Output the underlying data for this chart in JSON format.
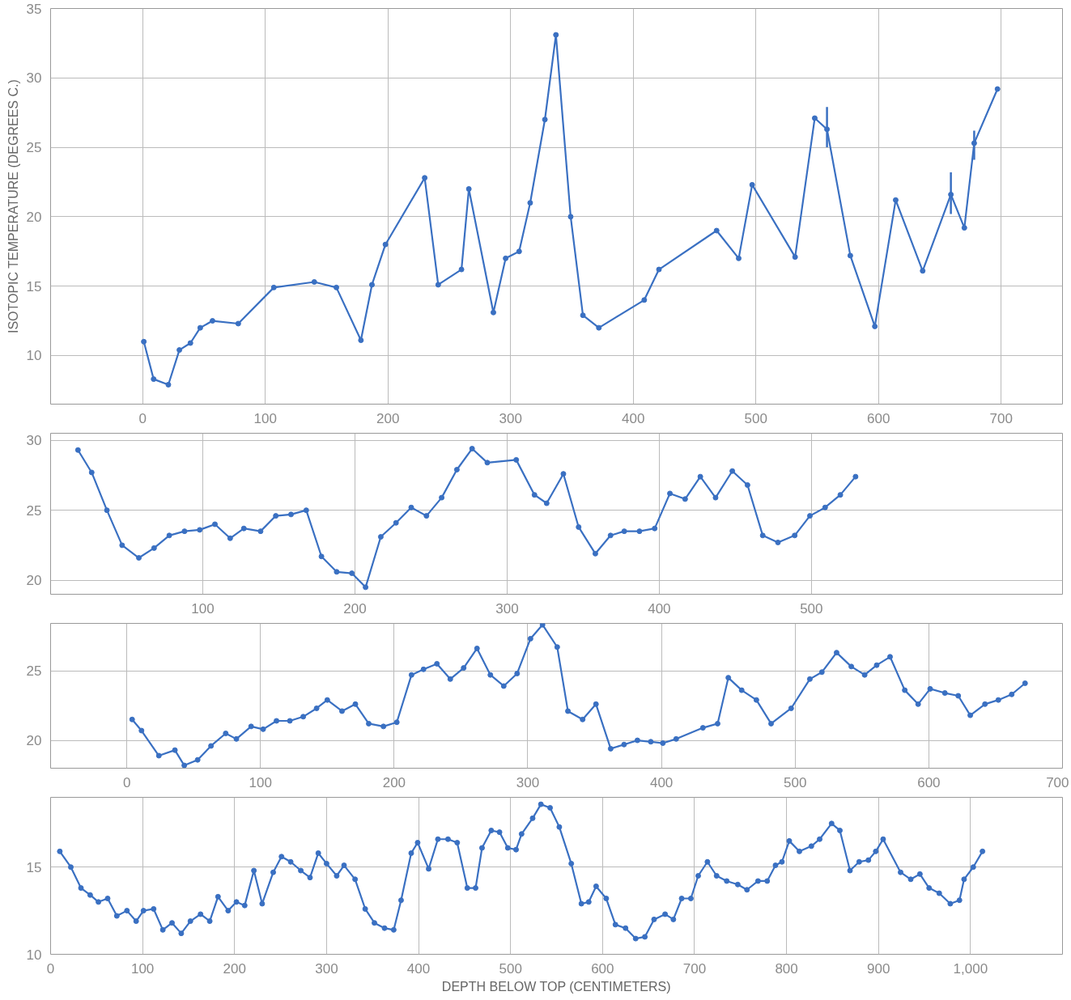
{
  "chart_data": [
    {
      "type": "line",
      "ylabel": "ISOTOPIC TEMPERATURE (DEGREES C.)",
      "marker": "circle",
      "grid": true,
      "color": "#3a70c2",
      "x": [
        1,
        9,
        21,
        30,
        39,
        47,
        57,
        78,
        107,
        140,
        158,
        178,
        187,
        198,
        230,
        241,
        260,
        266,
        286,
        296,
        307,
        316,
        328,
        337,
        349,
        359,
        372,
        409,
        421,
        468,
        486,
        497,
        532,
        548,
        558,
        577,
        597,
        614,
        636,
        659,
        670,
        678,
        697
      ],
      "values": [
        11.0,
        8.3,
        7.9,
        10.4,
        10.9,
        12.0,
        12.5,
        12.3,
        14.9,
        15.3,
        14.9,
        11.1,
        15.1,
        18.0,
        22.8,
        15.1,
        16.2,
        22.0,
        13.1,
        17.0,
        17.5,
        21.0,
        27.0,
        33.1,
        20.0,
        12.9,
        12.0,
        14.0,
        16.2,
        19.0,
        17.0,
        22.3,
        17.1,
        27.1,
        26.3,
        17.2,
        12.1,
        21.2,
        16.1,
        21.6,
        19.2,
        25.3,
        29.2
      ],
      "errors": [
        null,
        null,
        null,
        null,
        null,
        null,
        null,
        null,
        null,
        null,
        null,
        null,
        null,
        null,
        null,
        null,
        null,
        null,
        null,
        null,
        null,
        null,
        null,
        null,
        null,
        null,
        null,
        null,
        null,
        null,
        null,
        null,
        null,
        null,
        [
          25.0,
          27.9
        ],
        null,
        null,
        null,
        null,
        [
          20.2,
          23.2
        ],
        null,
        [
          24.1,
          26.2
        ],
        null
      ],
      "xlim": [
        -75,
        750
      ],
      "ylim": [
        6.5,
        35
      ],
      "xticks": [
        0,
        100,
        200,
        300,
        400,
        500,
        600,
        700
      ],
      "yticks": [
        10,
        15,
        20,
        25,
        30,
        35
      ]
    },
    {
      "type": "line",
      "marker": "circle",
      "grid": true,
      "color": "#3a70c2",
      "x": [
        18,
        27,
        37,
        47,
        58,
        68,
        78,
        88,
        98,
        108,
        118,
        127,
        138,
        148,
        158,
        168,
        178,
        188,
        198,
        207,
        217,
        227,
        237,
        247,
        257,
        267,
        277,
        287,
        306,
        318,
        326,
        337,
        347,
        358,
        368,
        377,
        387,
        397,
        407,
        417,
        427,
        437,
        448,
        458,
        468,
        478,
        489,
        499,
        509,
        519,
        529
      ],
      "values": [
        29.3,
        27.7,
        25.0,
        22.5,
        21.6,
        22.3,
        23.2,
        23.5,
        23.6,
        24.0,
        23.0,
        23.7,
        23.5,
        24.6,
        24.7,
        25.0,
        21.7,
        20.6,
        20.5,
        19.5,
        23.1,
        24.1,
        25.2,
        24.6,
        25.9,
        27.9,
        29.4,
        28.4,
        28.6,
        26.1,
        25.5,
        27.6,
        23.8,
        21.9,
        23.2,
        23.5,
        23.5,
        23.7,
        26.2,
        25.8,
        27.4,
        25.9,
        27.8,
        26.8,
        23.2,
        22.7,
        23.2,
        24.6,
        25.2,
        26.1,
        27.4
      ],
      "xlim": [
        0,
        665
      ],
      "ylim": [
        19,
        30.5
      ],
      "xticks": [
        100,
        200,
        300,
        400,
        500
      ],
      "yticks": [
        20,
        25,
        30
      ]
    },
    {
      "type": "line",
      "marker": "circle",
      "grid": true,
      "color": "#3a70c2",
      "x": [
        4,
        11,
        24,
        36,
        43,
        53,
        63,
        74,
        82,
        93,
        102,
        112,
        122,
        132,
        142,
        150,
        161,
        171,
        181,
        192,
        202,
        213,
        222,
        232,
        242,
        252,
        262,
        272,
        282,
        292,
        302,
        311,
        322,
        330,
        341,
        351,
        362,
        372,
        382,
        392,
        401,
        411,
        431,
        442,
        450,
        460,
        471,
        482,
        497,
        511,
        520,
        531,
        542,
        552,
        561,
        571,
        582,
        592,
        601,
        612,
        622,
        631,
        642,
        652,
        662,
        672
      ],
      "values": [
        21.5,
        20.7,
        18.9,
        19.3,
        18.2,
        18.6,
        19.6,
        20.5,
        20.1,
        21.0,
        20.8,
        21.4,
        21.4,
        21.7,
        22.3,
        22.9,
        22.1,
        22.6,
        21.2,
        21.0,
        21.3,
        24.7,
        25.1,
        25.5,
        24.4,
        25.2,
        26.6,
        24.7,
        23.9,
        24.8,
        27.3,
        28.3,
        26.7,
        22.1,
        21.5,
        22.6,
        19.4,
        19.7,
        20.0,
        19.9,
        19.8,
        20.1,
        20.9,
        21.2,
        24.5,
        23.6,
        22.9,
        21.2,
        22.3,
        24.4,
        24.9,
        26.3,
        25.3,
        24.7,
        25.4,
        26.0,
        23.6,
        22.6,
        23.7,
        23.4,
        23.2,
        21.8,
        22.6,
        22.9,
        23.3,
        24.1
      ],
      "xlim": [
        -57,
        700
      ],
      "ylim": [
        18,
        28.4
      ],
      "xticks": [
        0,
        100,
        200,
        300,
        400,
        500,
        600,
        700
      ],
      "yticks": [
        20,
        25
      ]
    },
    {
      "type": "line",
      "xlabel": "DEPTH BELOW TOP (CENTIMETERS)",
      "marker": "circle",
      "grid": true,
      "color": "#3a70c2",
      "x": [
        10,
        22,
        33,
        43,
        52,
        62,
        72,
        83,
        93,
        101,
        112,
        122,
        132,
        142,
        152,
        163,
        173,
        182,
        193,
        202,
        211,
        221,
        230,
        242,
        251,
        261,
        272,
        282,
        291,
        300,
        311,
        319,
        331,
        342,
        352,
        363,
        373,
        381,
        392,
        399,
        411,
        421,
        432,
        442,
        453,
        462,
        469,
        479,
        488,
        497,
        506,
        512,
        524,
        533,
        543,
        553,
        566,
        577,
        585,
        593,
        604,
        614,
        625,
        636,
        646,
        656,
        668,
        677,
        686,
        696,
        704,
        714,
        724,
        735,
        747,
        757,
        769,
        779,
        788,
        795,
        803,
        814,
        827,
        836,
        849,
        858,
        869,
        879,
        889,
        897,
        905,
        924,
        935,
        945,
        955,
        966,
        978,
        988,
        993,
        1003,
        1013
      ],
      "values": [
        15.9,
        15.0,
        13.8,
        13.4,
        13.0,
        13.2,
        12.2,
        12.5,
        11.9,
        12.5,
        12.6,
        11.4,
        11.8,
        11.2,
        11.9,
        12.3,
        11.9,
        13.3,
        12.5,
        13.0,
        12.8,
        14.8,
        12.9,
        14.7,
        15.6,
        15.3,
        14.8,
        14.4,
        15.8,
        15.2,
        14.5,
        15.1,
        14.3,
        12.6,
        11.8,
        11.5,
        11.4,
        13.1,
        15.8,
        16.4,
        14.9,
        16.6,
        16.6,
        16.4,
        13.8,
        13.8,
        16.1,
        17.1,
        17.0,
        16.1,
        16.0,
        16.9,
        17.8,
        18.6,
        18.4,
        17.3,
        15.2,
        12.9,
        13.0,
        13.9,
        13.2,
        11.7,
        11.5,
        10.9,
        11.0,
        12.0,
        12.3,
        12.0,
        13.2,
        13.2,
        14.5,
        15.3,
        14.5,
        14.2,
        14.0,
        13.7,
        14.2,
        14.2,
        15.1,
        15.3,
        16.5,
        15.9,
        16.2,
        16.6,
        17.5,
        17.1,
        14.8,
        15.3,
        15.4,
        15.9,
        16.6,
        14.7,
        14.3,
        14.6,
        13.8,
        13.5,
        12.9,
        13.1,
        14.3,
        15.0,
        15.9
      ],
      "xlim": [
        0,
        1100
      ],
      "ylim": [
        10,
        19
      ],
      "xticks": [
        0,
        100,
        200,
        300,
        400,
        500,
        600,
        700,
        800,
        900,
        {
          "value": 1000,
          "label": "1,000"
        }
      ],
      "yticks": [
        10,
        15
      ]
    }
  ]
}
